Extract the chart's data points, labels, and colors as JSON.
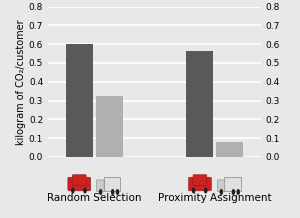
{
  "groups": [
    "Random Selection",
    "Proximity Assignment"
  ],
  "bar_values": [
    [
      0.6,
      0.325
    ],
    [
      0.565,
      0.082
    ]
  ],
  "dark_bar_color": "#595959",
  "light_bar_color": "#b0b0b0",
  "bar_width": 0.38,
  "group_centers": [
    0.85,
    2.55
  ],
  "xlim": [
    0.2,
    3.2
  ],
  "ylim": [
    0,
    0.8
  ],
  "yticks": [
    0.0,
    0.1,
    0.2,
    0.3,
    0.4,
    0.5,
    0.6,
    0.7,
    0.8
  ],
  "ylabel": "kilogram of CO₂/customer",
  "ylabel_fontsize": 7,
  "tick_fontsize": 6.5,
  "group_label_fontsize": 7.5,
  "background_color": "#e8e8e8",
  "axes_bg_color": "#e8e8e8",
  "grid_color": "#ffffff",
  "grid_linewidth": 1.2,
  "car_color_body": "#cc2222",
  "car_color_roof": "#cc1111",
  "truck_body_color": "#e0e0e0",
  "truck_cab_color": "#cccccc"
}
